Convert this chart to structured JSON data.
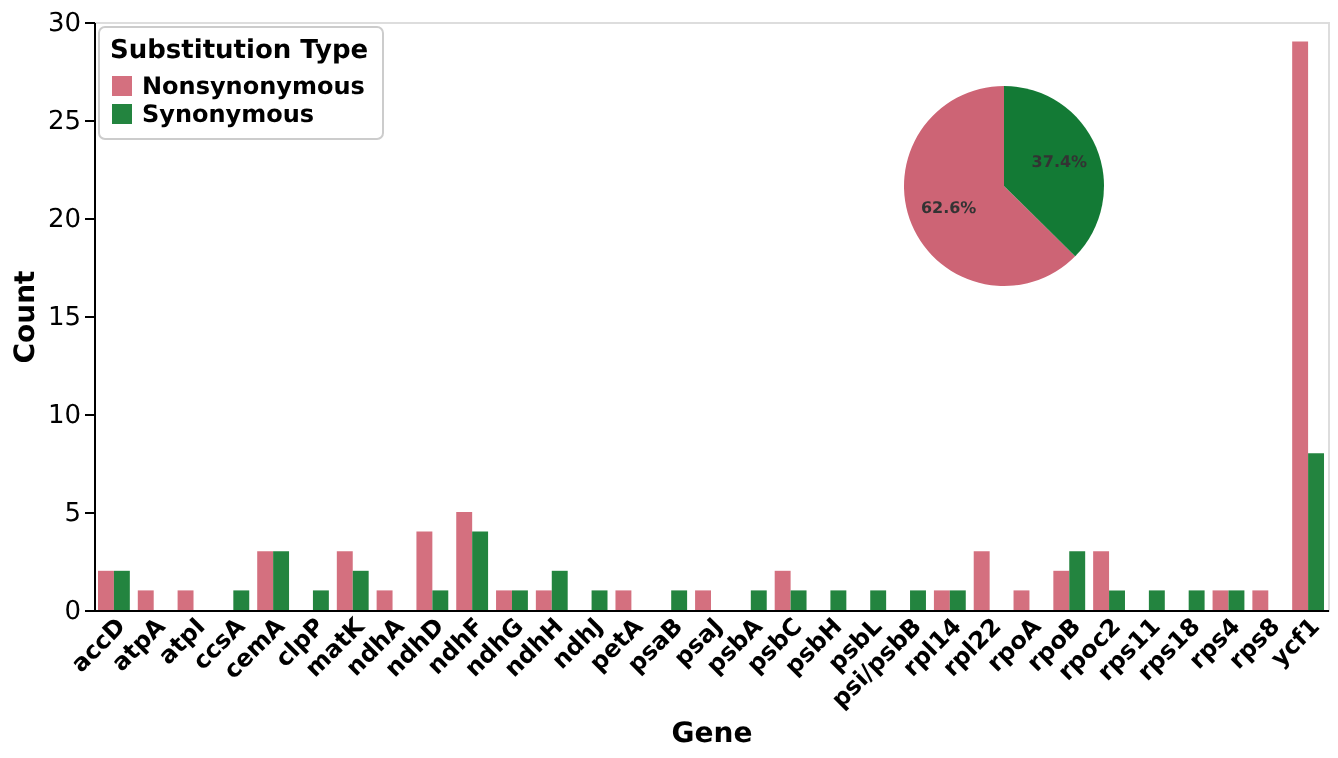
{
  "chart_data": [
    {
      "type": "bar",
      "xlabel": "Gene",
      "ylabel": "Count",
      "legend_title": "Substitution Type",
      "legend": "top left",
      "grid": false,
      "ylim": [
        0,
        30
      ],
      "yticks": [
        0,
        5,
        10,
        15,
        20,
        25,
        30
      ],
      "categories": [
        "accD",
        "atpA",
        "atpI",
        "ccsA",
        "cemA",
        "clpP",
        "matK",
        "ndhA",
        "ndhD",
        "ndhF",
        "ndhG",
        "ndhH",
        "ndhJ",
        "petA",
        "psaB",
        "psaJ",
        "psbA",
        "psbC",
        "psbH",
        "psbL",
        "psi/psbB",
        "rpl14",
        "rpl22",
        "rpoA",
        "rpoB",
        "rpoc2",
        "rps11",
        "rps18",
        "rps4",
        "rps8",
        "ycf1"
      ],
      "series": [
        {
          "name": "Nonsynonymous",
          "color": "#d4707f",
          "values": [
            2,
            1,
            1,
            0,
            3,
            0,
            3,
            1,
            4,
            5,
            1,
            1,
            0,
            1,
            0,
            1,
            0,
            2,
            0,
            0,
            0,
            1,
            3,
            1,
            2,
            3,
            0,
            0,
            1,
            1,
            29
          ]
        },
        {
          "name": "Synonymous",
          "color": "#23843f",
          "values": [
            2,
            0,
            0,
            1,
            3,
            1,
            2,
            0,
            1,
            4,
            1,
            2,
            1,
            0,
            1,
            0,
            1,
            1,
            1,
            1,
            1,
            1,
            0,
            0,
            3,
            1,
            1,
            1,
            1,
            0,
            8
          ]
        }
      ]
    },
    {
      "type": "pie",
      "values": [
        62.6,
        37.4
      ],
      "colors": [
        "#cd6475",
        "#137a35"
      ],
      "value_labels": [
        "62.6%",
        "37.4%"
      ]
    }
  ]
}
